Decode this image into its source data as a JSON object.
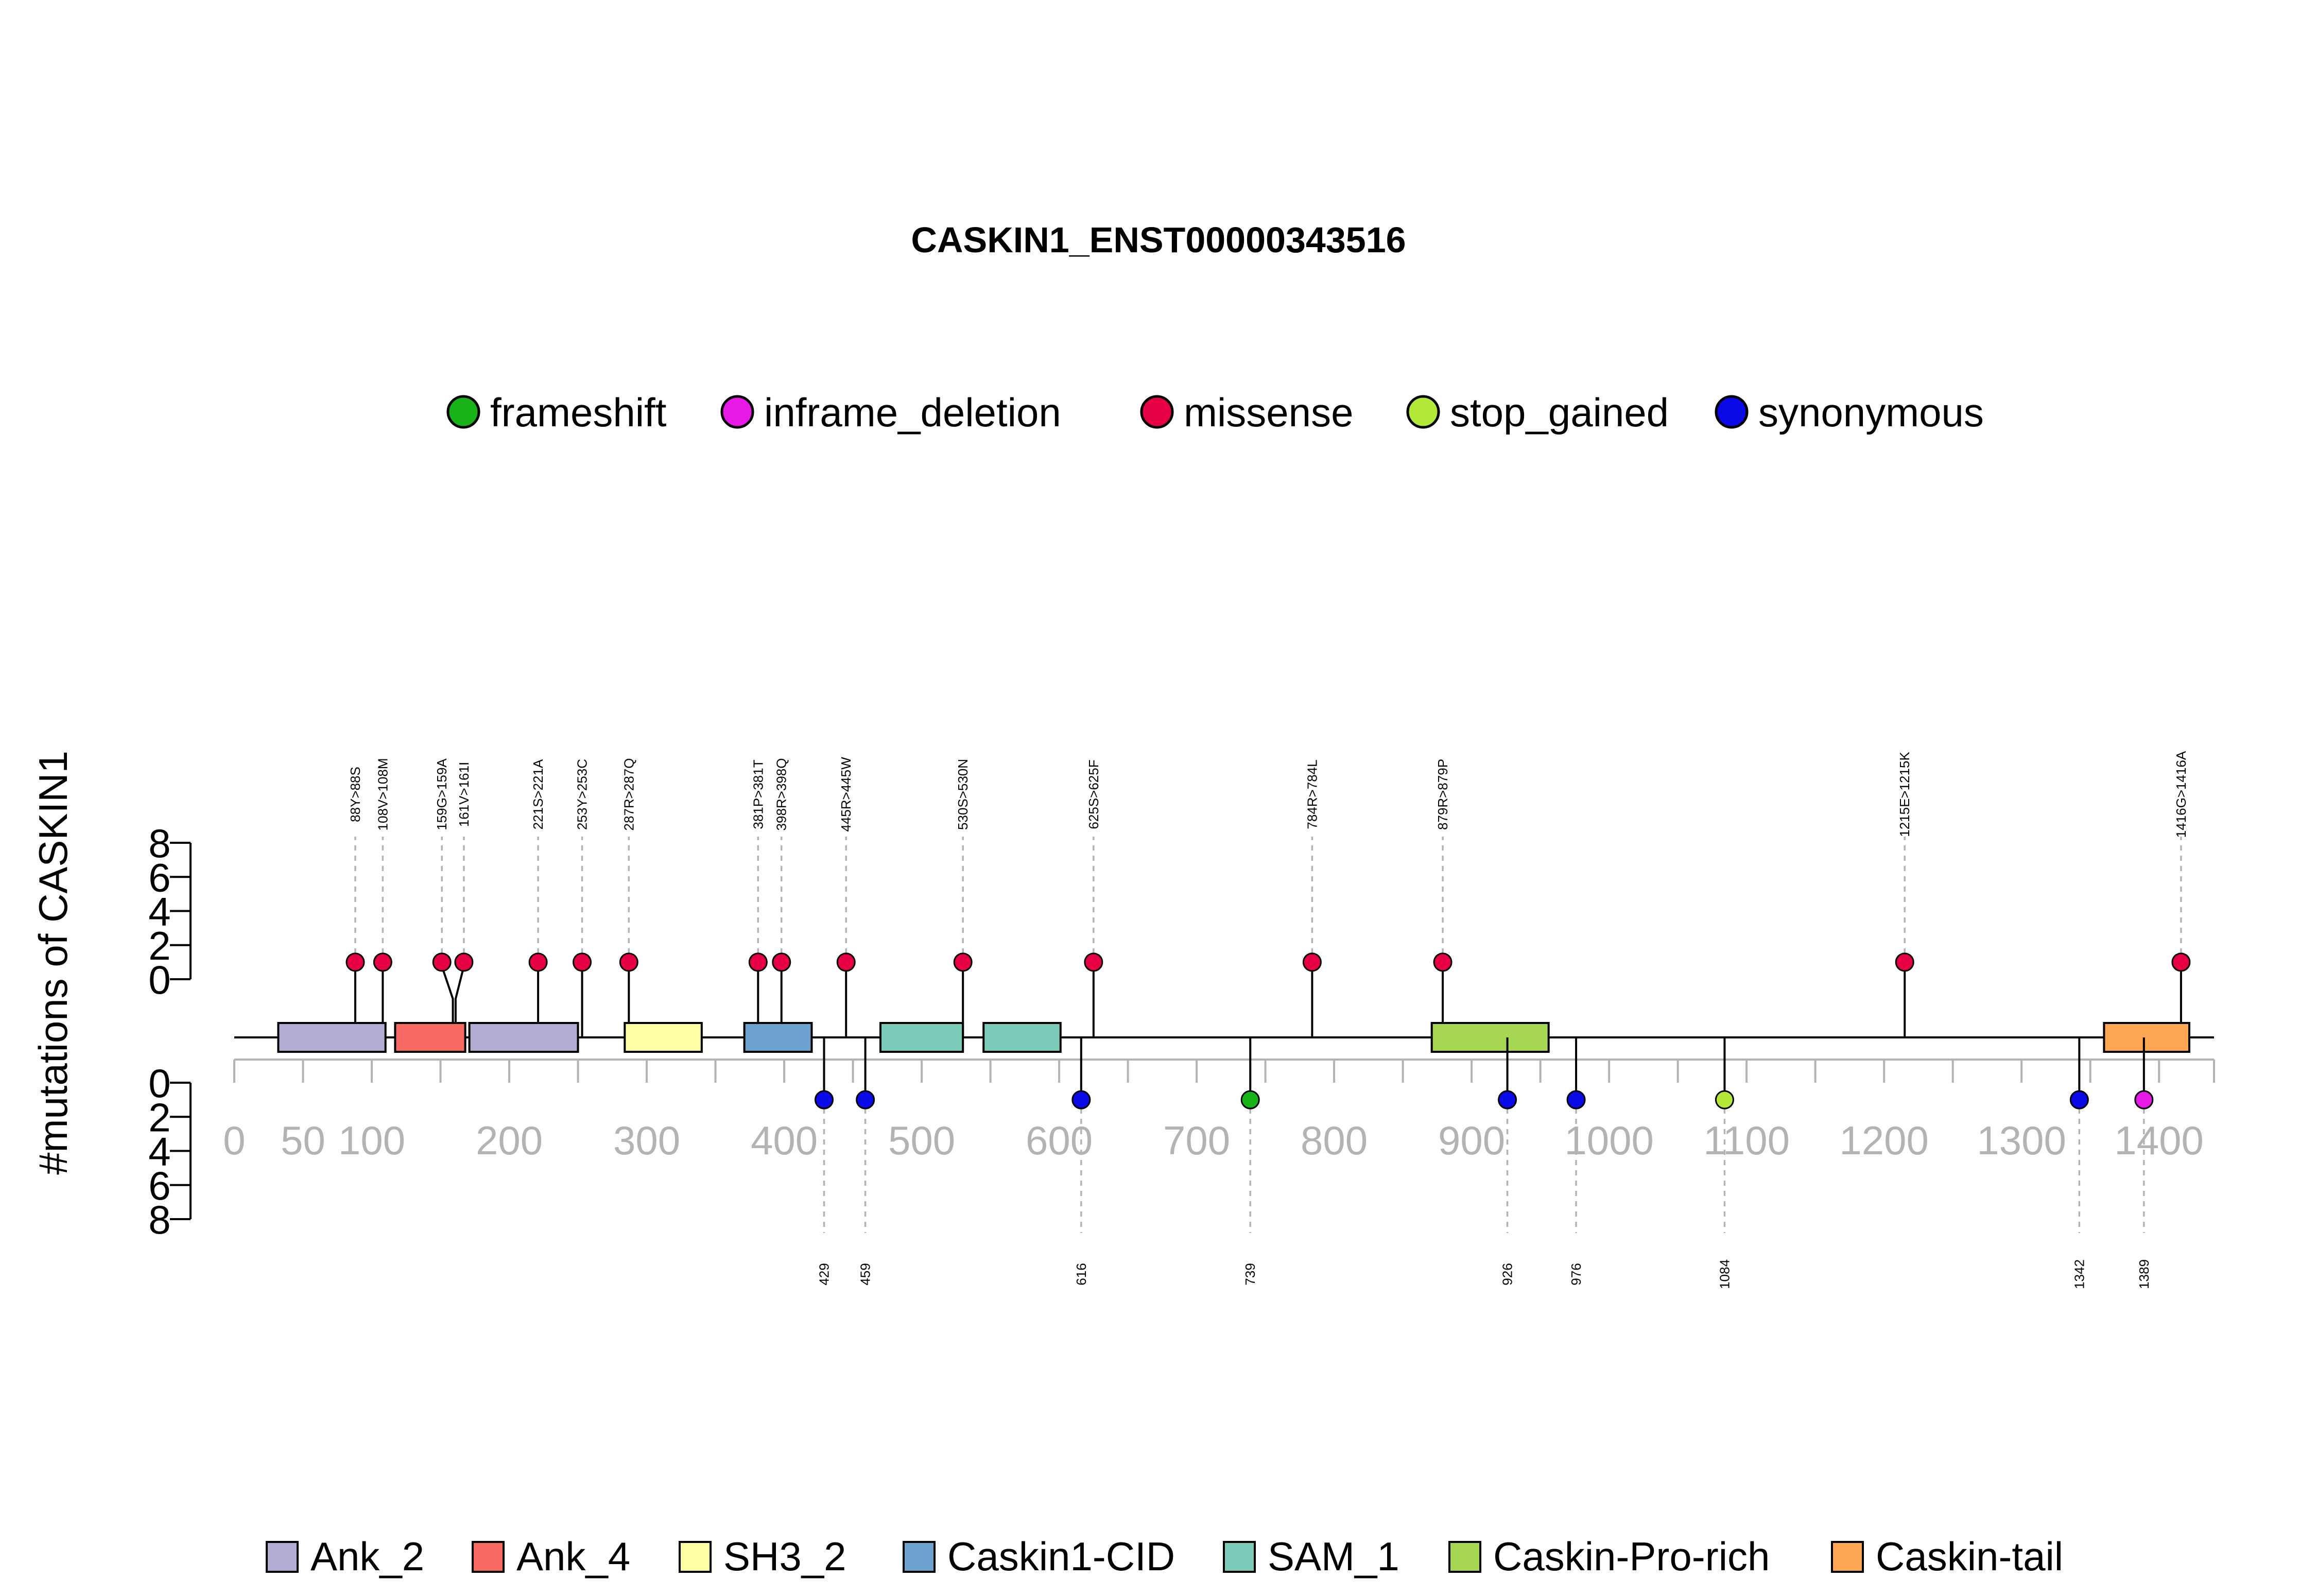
{
  "chart_data": {
    "type": "lollipop",
    "title": "CASKIN1_ENST00000343516",
    "ylabel": "#mutations of CASKIN1",
    "xlim": [
      0,
      1440
    ],
    "x_ticks": [
      0,
      50,
      100,
      200,
      300,
      400,
      500,
      600,
      700,
      800,
      900,
      1000,
      1100,
      1200,
      1300,
      1400
    ],
    "y_ticks_top": [
      0,
      2,
      4,
      6,
      8
    ],
    "y_ticks_bottom": [
      0,
      2,
      4,
      6,
      8
    ],
    "ylim": [
      0,
      8
    ],
    "mutation_legend": [
      {
        "name": "frameshift",
        "color": "#19b219"
      },
      {
        "name": "inframe_deletion",
        "color": "#e619e6"
      },
      {
        "name": "missense",
        "color": "#e60044"
      },
      {
        "name": "stop_gained",
        "color": "#b3ea3a"
      },
      {
        "name": "synonymous",
        "color": "#0a0ae6"
      }
    ],
    "domain_legend": [
      {
        "name": "Ank_2",
        "color": "#b3acd3"
      },
      {
        "name": "Ank_4",
        "color": "#f76b62"
      },
      {
        "name": "SH3_2",
        "color": "#ffffa6"
      },
      {
        "name": "Caskin1-CID",
        "color": "#6ea3cf"
      },
      {
        "name": "SAM_1",
        "color": "#7ccbb8"
      },
      {
        "name": "Caskin-Pro-rich",
        "color": "#a6d854"
      },
      {
        "name": "Caskin-tail",
        "color": "#fda654"
      }
    ],
    "domains": [
      {
        "name": "Ank_2",
        "start": 32,
        "end": 110
      },
      {
        "name": "Ank_4",
        "start": 117,
        "end": 168
      },
      {
        "name": "Ank_2",
        "start": 171,
        "end": 250
      },
      {
        "name": "SH3_2",
        "start": 284,
        "end": 340
      },
      {
        "name": "Caskin1-CID",
        "start": 371,
        "end": 420
      },
      {
        "name": "SAM_1",
        "start": 470,
        "end": 530
      },
      {
        "name": "SAM_1",
        "start": 545,
        "end": 601
      },
      {
        "name": "Caskin-Pro-rich",
        "start": 871,
        "end": 956
      },
      {
        "name": "Caskin-tail",
        "start": 1360,
        "end": 1422
      }
    ],
    "mutations_top": [
      {
        "pos": 88,
        "head": 88,
        "count": 1,
        "type": "missense",
        "label": "88Y>88S"
      },
      {
        "pos": 108,
        "head": 108,
        "count": 1,
        "type": "missense",
        "label": "108V>108M"
      },
      {
        "pos": 159,
        "head": 151,
        "count": 1,
        "type": "missense",
        "label": "159G>159A"
      },
      {
        "pos": 161,
        "head": 167,
        "count": 1,
        "type": "missense",
        "label": "161V>161I"
      },
      {
        "pos": 221,
        "head": 221,
        "count": 1,
        "type": "missense",
        "label": "221S>221A"
      },
      {
        "pos": 253,
        "head": 253,
        "count": 1,
        "type": "missense",
        "label": "253Y>253C"
      },
      {
        "pos": 287,
        "head": 287,
        "count": 1,
        "type": "missense",
        "label": "287R>287Q"
      },
      {
        "pos": 381,
        "head": 381,
        "count": 1,
        "type": "missense",
        "label": "381P>381T"
      },
      {
        "pos": 398,
        "head": 398,
        "count": 1,
        "type": "missense",
        "label": "398R>398Q"
      },
      {
        "pos": 445,
        "head": 445,
        "count": 1,
        "type": "missense",
        "label": "445R>445W"
      },
      {
        "pos": 530,
        "head": 530,
        "count": 1,
        "type": "missense",
        "label": "530S>530N"
      },
      {
        "pos": 625,
        "head": 625,
        "count": 1,
        "type": "missense",
        "label": "625S>625F"
      },
      {
        "pos": 784,
        "head": 784,
        "count": 1,
        "type": "missense",
        "label": "784R>784L"
      },
      {
        "pos": 879,
        "head": 879,
        "count": 1,
        "type": "missense",
        "label": "879R>879P"
      },
      {
        "pos": 1215,
        "head": 1215,
        "count": 1,
        "type": "missense",
        "label": "1215E>1215K"
      },
      {
        "pos": 1416,
        "head": 1416,
        "count": 1,
        "type": "missense",
        "label": "1416G>1416A"
      }
    ],
    "mutations_bottom": [
      {
        "pos": 429,
        "count": 1,
        "type": "synonymous",
        "label": "429"
      },
      {
        "pos": 459,
        "count": 1,
        "type": "synonymous",
        "label": "459"
      },
      {
        "pos": 616,
        "count": 1,
        "type": "synonymous",
        "label": "616"
      },
      {
        "pos": 739,
        "count": 1,
        "type": "frameshift",
        "label": "739"
      },
      {
        "pos": 926,
        "count": 1,
        "type": "synonymous",
        "label": "926"
      },
      {
        "pos": 976,
        "count": 1,
        "type": "synonymous",
        "label": "976"
      },
      {
        "pos": 1084,
        "count": 1,
        "type": "stop_gained",
        "label": "1084"
      },
      {
        "pos": 1342,
        "count": 1,
        "type": "synonymous",
        "label": "1342"
      },
      {
        "pos": 1389,
        "count": 1,
        "type": "inframe_deletion",
        "label": "1389"
      }
    ]
  }
}
